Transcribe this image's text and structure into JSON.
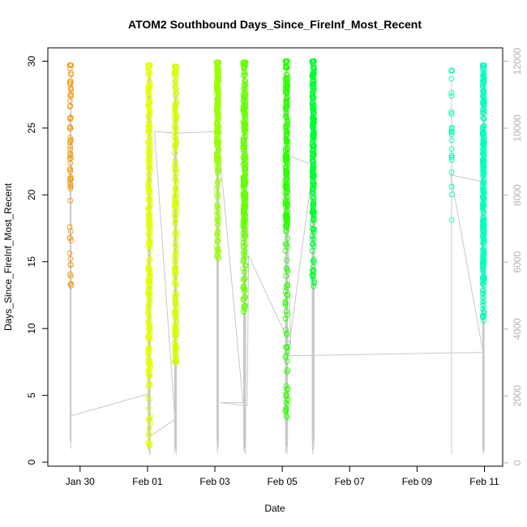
{
  "chart_data": {
    "type": "scatter",
    "title": "ATOM2 Southbound Days_Since_FireInf_Most_Recent",
    "xlabel": "Date",
    "ylabel": "Days_Since_FireInf_Most_Recent",
    "x_axis": {
      "unit": "date",
      "range": [
        "2024-01-29 01:00",
        "2024-02-11 13:00"
      ],
      "ticks": [
        "2024-01-30",
        "2024-02-01",
        "2024-02-03",
        "2024-02-05",
        "2024-02-07",
        "2024-02-09",
        "2024-02-11"
      ],
      "tick_labels": [
        "Jan 30",
        "Feb 01",
        "Feb 03",
        "Feb 05",
        "Feb 07",
        "Feb 09",
        "Feb 11"
      ]
    },
    "y_axis": {
      "range": [
        -0.3,
        31
      ],
      "ticks": [
        0,
        5,
        10,
        15,
        20,
        25,
        30
      ]
    },
    "y2_axis": {
      "range": [
        -100,
        12400
      ],
      "ticks": [
        0,
        2000,
        4000,
        6000,
        8000,
        10000,
        12000
      ],
      "color": "#b3b3b3"
    },
    "grid": false,
    "legend": "none",
    "clusters": [
      {
        "date": "2024-01-29",
        "center_hour": 17.1,
        "spread_hours": 1.0,
        "n": 70,
        "y_min": 13.0,
        "y_max": 29.7,
        "y_mode": 23.5,
        "color": "#f39c12"
      },
      {
        "date": "2024-02-01",
        "center_hour": 1.2,
        "spread_hours": 1.5,
        "n": 320,
        "y_min": 1.0,
        "y_max": 29.7,
        "y_mode": 16.0,
        "color": "#e6ff00"
      },
      {
        "date": "2024-02-01",
        "center_hour": 20.0,
        "spread_hours": 1.5,
        "n": 260,
        "y_min": 7.5,
        "y_max": 29.6,
        "y_mode": 14.0,
        "color": "#d6ff00"
      },
      {
        "date": "2024-02-03",
        "center_hour": 2.0,
        "spread_hours": 1.6,
        "n": 230,
        "y_min": 15.2,
        "y_max": 29.9,
        "y_mode": 25.5,
        "color": "#99ff00"
      },
      {
        "date": "2024-02-03",
        "center_hour": 21.0,
        "spread_hours": 1.8,
        "n": 300,
        "y_min": 11.2,
        "y_max": 29.9,
        "y_mode": 22.5,
        "color": "#66ff00"
      },
      {
        "date": "2024-02-05",
        "center_hour": 3.0,
        "spread_hours": 1.6,
        "n": 260,
        "y_min": 3.2,
        "y_max": 30.0,
        "y_mode": 22.5,
        "color": "#2bff00"
      },
      {
        "date": "2024-02-05",
        "center_hour": 22.0,
        "spread_hours": 1.4,
        "n": 260,
        "y_min": 13.0,
        "y_max": 30.0,
        "y_mode": 23.0,
        "color": "#00ff33"
      },
      {
        "date": "2024-02-10",
        "center_hour": 0.7,
        "spread_hours": 0.3,
        "n": 25,
        "y_min": 12.3,
        "y_max": 29.3,
        "y_mode": 25.0,
        "color": "#00ffaa"
      },
      {
        "date": "2024-02-10",
        "center_hour": 23.3,
        "spread_hours": 1.2,
        "n": 320,
        "y_min": 10.6,
        "y_max": 29.7,
        "y_mode": 20.0,
        "color": "#00ffbf"
      }
    ],
    "index_trace": {
      "color": "#c8c8c8",
      "note_axis": "y2",
      "points": [
        [
          "2024-01-29 17:00",
          1400
        ],
        [
          "2024-02-01 00:00",
          2050
        ],
        [
          "2024-02-01 02:00",
          800
        ],
        [
          "2024-02-01 19:30",
          1300
        ],
        [
          "2024-02-01 05:00",
          9900
        ],
        [
          "2024-02-01 21:00",
          9850
        ],
        [
          "2024-02-03 02:00",
          9900
        ],
        [
          "2024-02-03 20:00",
          1800
        ],
        [
          "2024-02-03 04:00",
          1800
        ],
        [
          "2024-02-03 23:00",
          1700
        ],
        [
          "2024-02-04 00:00",
          6200
        ],
        [
          "2024-02-05 06:00",
          3500
        ],
        [
          "2024-02-05 03:00",
          9200
        ],
        [
          "2024-02-05 22:00",
          8900
        ],
        [
          "2024-02-05 04:00",
          3200
        ],
        [
          "2024-02-10 23:00",
          3300
        ],
        [
          "2024-02-10 00:00",
          8600
        ],
        [
          "2024-02-10 23:00",
          8400
        ]
      ]
    }
  }
}
